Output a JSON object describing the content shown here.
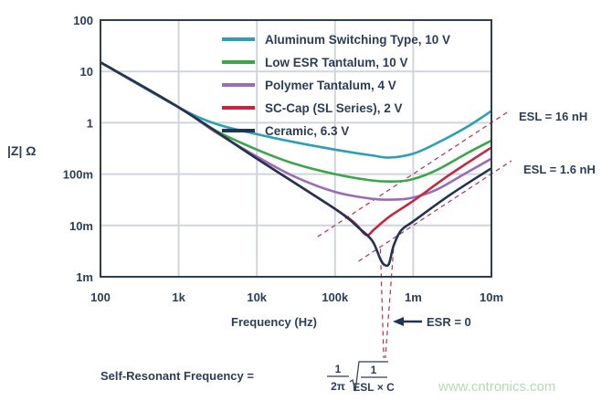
{
  "chart_data": {
    "type": "line",
    "xlabel": "Frequency (Hz)",
    "ylabel": "|Z| Ω",
    "xscale": "log",
    "yscale": "log",
    "xlim": [
      100,
      10000000
    ],
    "ylim": [
      0.001,
      100
    ],
    "x_ticks": [
      {
        "v": 100,
        "label": "100"
      },
      {
        "v": 1000,
        "label": "1k"
      },
      {
        "v": 10000,
        "label": "10k"
      },
      {
        "v": 100000,
        "label": "100k"
      },
      {
        "v": 1000000,
        "label": "1m"
      },
      {
        "v": 10000000,
        "label": "10m"
      }
    ],
    "y_ticks": [
      {
        "v": 100,
        "label": "100"
      },
      {
        "v": 10,
        "label": "10"
      },
      {
        "v": 1,
        "label": "1"
      },
      {
        "v": 0.1,
        "label": "100m"
      },
      {
        "v": 0.01,
        "label": "10m"
      },
      {
        "v": 0.001,
        "label": "1m"
      }
    ],
    "grid": true,
    "legend_position": "top-right",
    "series": [
      {
        "name": "Aluminum Switching Type, 10 V",
        "color": "#2a9fb5",
        "points": [
          [
            100,
            15
          ],
          [
            1000,
            2
          ],
          [
            3000,
            0.95
          ],
          [
            10000,
            0.6
          ],
          [
            30000,
            0.42
          ],
          [
            100000,
            0.3
          ],
          [
            300000,
            0.23
          ],
          [
            500000,
            0.21
          ],
          [
            1000000,
            0.25
          ],
          [
            2000000,
            0.4
          ],
          [
            5000000,
            0.85
          ],
          [
            10000000,
            1.7
          ]
        ]
      },
      {
        "name": "Low ESR Tantalum, 10 V",
        "color": "#3aa54a",
        "points": [
          [
            100,
            15
          ],
          [
            1000,
            2
          ],
          [
            3000,
            0.7
          ],
          [
            10000,
            0.3
          ],
          [
            30000,
            0.16
          ],
          [
            100000,
            0.1
          ],
          [
            300000,
            0.075
          ],
          [
            600000,
            0.072
          ],
          [
            1000000,
            0.08
          ],
          [
            2000000,
            0.12
          ],
          [
            5000000,
            0.26
          ],
          [
            10000000,
            0.45
          ]
        ]
      },
      {
        "name": "Polymer Tantalum, 4 V",
        "color": "#9a6cb8",
        "points": [
          [
            100,
            15
          ],
          [
            1000,
            2
          ],
          [
            3000,
            0.65
          ],
          [
            10000,
            0.22
          ],
          [
            30000,
            0.09
          ],
          [
            100000,
            0.045
          ],
          [
            300000,
            0.033
          ],
          [
            600000,
            0.032
          ],
          [
            1000000,
            0.035
          ],
          [
            2000000,
            0.05
          ],
          [
            5000000,
            0.11
          ],
          [
            10000000,
            0.2
          ]
        ]
      },
      {
        "name": "SC-Cap (SL Series), 2 V",
        "color": "#c8253f",
        "points": [
          [
            100,
            15
          ],
          [
            1000,
            2
          ],
          [
            10000,
            0.2
          ],
          [
            100000,
            0.021
          ],
          [
            180000,
            0.011
          ],
          [
            250000,
            0.0065
          ],
          [
            320000,
            0.0085
          ],
          [
            500000,
            0.015
          ],
          [
            1000000,
            0.03
          ],
          [
            3000000,
            0.1
          ],
          [
            10000000,
            0.33
          ]
        ]
      },
      {
        "name": "Ceramic, 6.3 V",
        "color": "#1f3552",
        "points": [
          [
            100,
            15
          ],
          [
            1000,
            2
          ],
          [
            10000,
            0.2
          ],
          [
            100000,
            0.021
          ],
          [
            200000,
            0.009
          ],
          [
            300000,
            0.005
          ],
          [
            380000,
            0.0022
          ],
          [
            430000,
            0.0017
          ],
          [
            490000,
            0.0018
          ],
          [
            560000,
            0.004
          ],
          [
            700000,
            0.008
          ],
          [
            1000000,
            0.012
          ],
          [
            3000000,
            0.04
          ],
          [
            10000000,
            0.13
          ]
        ]
      }
    ],
    "annotations": [
      {
        "text": "ESL = 16 nH",
        "esl_nH": 16
      },
      {
        "text": "ESL = 1.6 nH",
        "esl_nH": 1.6
      },
      {
        "text": "ESR = 0"
      }
    ],
    "formula": {
      "prefix": "Self-Resonant Frequency =",
      "num1": "1",
      "den1": "2π",
      "num2": "1",
      "den2": "ESL × C"
    }
  },
  "watermark": "www.cntronics.com"
}
